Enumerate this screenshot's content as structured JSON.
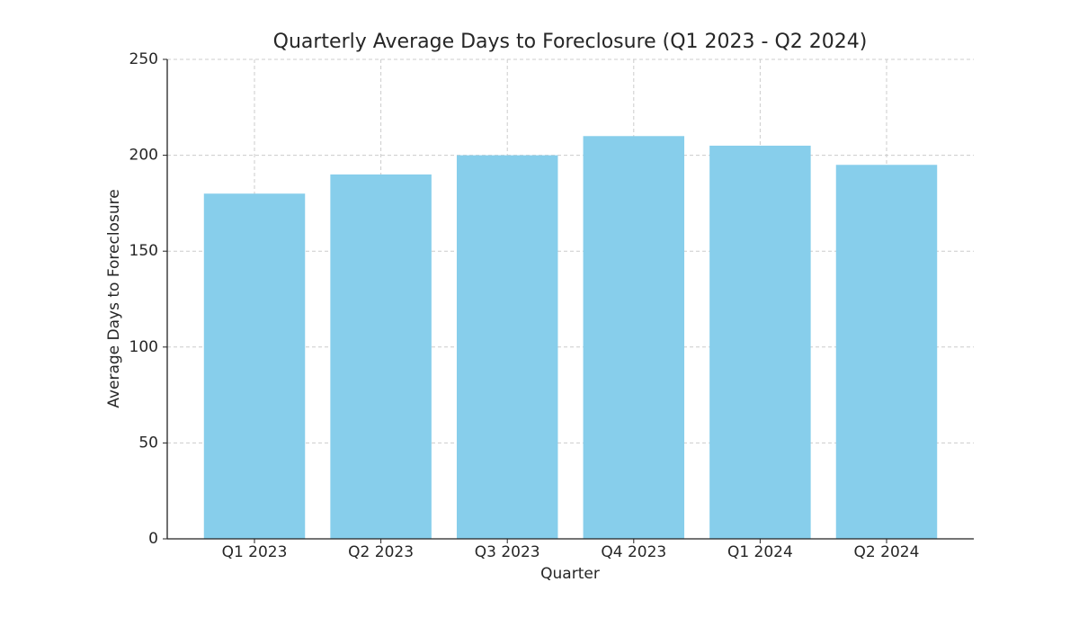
{
  "chart_data": {
    "type": "bar",
    "title": "Quarterly Average Days to Foreclosure (Q1 2023 - Q2 2024)",
    "x_label": "Quarter",
    "y_label": "Average Days to Foreclosure",
    "categories": [
      "Q1 2023",
      "Q2 2023",
      "Q3 2023",
      "Q4 2023",
      "Q1 2024",
      "Q2 2024"
    ],
    "values": [
      180,
      190,
      200,
      210,
      205,
      195
    ],
    "color": "#87ceeb",
    "ylim": [
      0,
      250
    ],
    "yticks": [
      0,
      50,
      100,
      150,
      200,
      250
    ],
    "grid": true
  }
}
